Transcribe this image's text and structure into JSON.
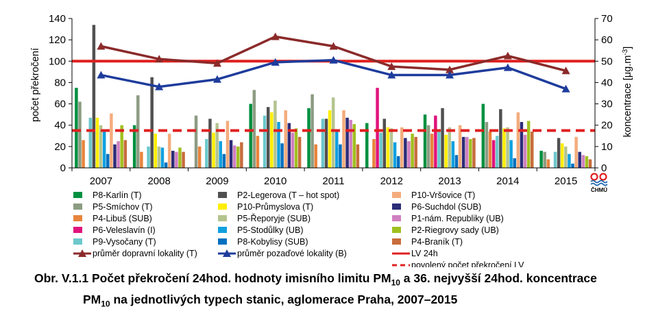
{
  "chart_data": {
    "type": "bar",
    "categories": [
      "2007",
      "2008",
      "2009",
      "2010",
      "2011",
      "2012",
      "2013",
      "2014",
      "2015"
    ],
    "ylabel_left": "počet překročení",
    "ylabel_right_main": "koncentrace [μg.m",
    "ylabel_right_sup": "-3",
    "ylabel_right_end": "]",
    "ylim_left": [
      0,
      140
    ],
    "ylim_right": [
      0,
      70
    ],
    "yticks_left": [
      "0",
      "20",
      "40",
      "60",
      "80",
      "100",
      "120",
      "140"
    ],
    "yticks_right": [
      "0",
      "10",
      "20",
      "30",
      "40",
      "50",
      "60",
      "70"
    ],
    "grid": false,
    "legend_position": "bottom",
    "series": [
      {
        "name": "P8-Karlín (T)",
        "color": "#009040",
        "values": [
          75,
          40,
          null,
          60,
          56,
          42,
          50,
          60,
          16
        ]
      },
      {
        "name": "P5-Smíchov (T)",
        "color": "#8c9c82",
        "values": [
          62,
          68,
          49,
          73,
          69,
          null,
          40,
          43,
          15
        ]
      },
      {
        "name": "P4-Libuš (SUB)",
        "color": "#e8843c",
        "values": [
          26,
          15,
          20,
          30,
          22,
          27,
          32,
          34,
          8
        ]
      },
      {
        "name": "P6-Veleslavín (I)",
        "color": "#e0147c",
        "values": [
          null,
          null,
          null,
          null,
          null,
          75,
          49,
          26,
          null
        ]
      },
      {
        "name": "P9-Vysočany (T)",
        "color": "#6cc8cc",
        "values": [
          47,
          20,
          27,
          49,
          46,
          33,
          36,
          30,
          15
        ]
      },
      {
        "name": "P2-Legerova (T – hot spot)",
        "color": "#505050",
        "values": [
          134,
          85,
          46,
          57,
          46,
          46,
          56,
          55,
          28
        ]
      },
      {
        "name": "P10-Průmyslova (T)",
        "color": "#ffee00",
        "values": [
          47,
          32,
          33,
          52,
          54,
          38,
          31,
          37,
          23
        ]
      },
      {
        "name": "P5-Řeporyje (SUB)",
        "color": "#b4c490",
        "values": [
          40,
          20,
          42,
          63,
          66,
          37,
          38,
          38,
          20
        ]
      },
      {
        "name": "P5-Stodůlky (UB)",
        "color": "#10a0e0",
        "values": [
          36,
          19,
          25,
          43,
          36,
          24,
          25,
          26,
          13
        ]
      },
      {
        "name": "P8-Kobylisy (SUB)",
        "color": "#0070c0",
        "values": [
          13,
          5,
          13,
          23,
          22,
          11,
          12,
          9,
          4
        ]
      },
      {
        "name": "P10-Vršovice (T)",
        "color": "#f4ac7c",
        "values": [
          51,
          32,
          44,
          54,
          54,
          38,
          40,
          52,
          29
        ]
      },
      {
        "name": "P6-Suchdol (SUB)",
        "color": "#2c2c78",
        "values": [
          22,
          16,
          26,
          42,
          47,
          28,
          29,
          43,
          15
        ]
      },
      {
        "name": "P1-nám. Republiky (UB)",
        "color": "#d080c0",
        "values": [
          25,
          15,
          21,
          33,
          45,
          25,
          29,
          31,
          12
        ]
      },
      {
        "name": "P2-Riegrovy sady (UB)",
        "color": "#a0c020",
        "values": [
          40,
          19,
          20,
          37,
          41,
          32,
          27,
          44,
          11
        ]
      },
      {
        "name": "P4-Braník (T)",
        "color": "#c86c3c",
        "values": [
          26,
          15,
          24,
          29,
          22,
          29,
          28,
          34,
          8
        ]
      }
    ],
    "lines": [
      {
        "name": "průměr dopravní lokality (T)",
        "color": "#8b2a2a",
        "marker": "triangle-up",
        "axis": "right",
        "values": [
          57,
          51,
          49,
          61.5,
          57,
          47.5,
          46,
          52.5,
          45.5
        ]
      },
      {
        "name": "průměr pozaďové lokality (B)",
        "color": "#1e3c9c",
        "marker": "triangle-up",
        "axis": "right",
        "values": [
          43.5,
          38,
          41.5,
          49.5,
          50.5,
          43.5,
          43.5,
          47,
          37
        ]
      }
    ],
    "reference_lines": [
      {
        "name": "LV 24h",
        "color": "#e02020",
        "style": "solid",
        "axis": "right",
        "value": 50
      },
      {
        "name": "povolený počet překročení LV",
        "color": "#e02020",
        "style": "dashed",
        "axis": "left",
        "value": 35
      }
    ]
  },
  "caption": {
    "line1_a": "Obr. V.1.1  Počet překročení 24hod. hodnoty imisního limitu PM",
    "line1_sub": "10",
    "line1_b": " a 36. nejvyšší 24hod. koncentrace",
    "line2_a": "PM",
    "line2_sub": "10",
    "line2_b": " na jednotlivých typech stanic, aglomerace Praha, 2007–2015"
  },
  "logo": {
    "text": "ČHMÚ",
    "colors": [
      "#e02020",
      "#1e6ab4"
    ]
  }
}
